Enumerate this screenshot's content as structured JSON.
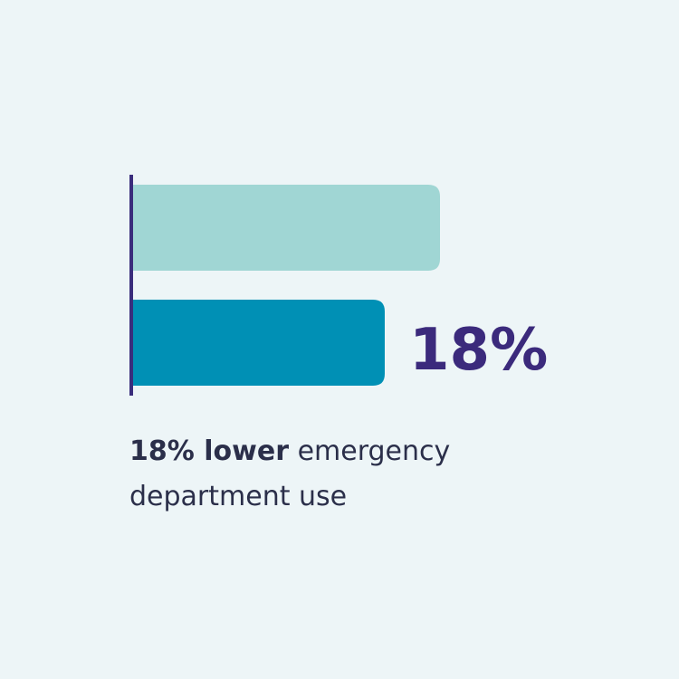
{
  "chart_data": {
    "type": "bar",
    "orientation": "horizontal",
    "series": [
      {
        "color": "#a0d6d4",
        "values": [
          100
        ]
      },
      {
        "color": "#0090b5",
        "values": [
          82
        ]
      }
    ],
    "annotation": "18%",
    "axis_color": "#3a2d7c",
    "caption_bold": "18% lower",
    "caption": "emergency department use"
  }
}
